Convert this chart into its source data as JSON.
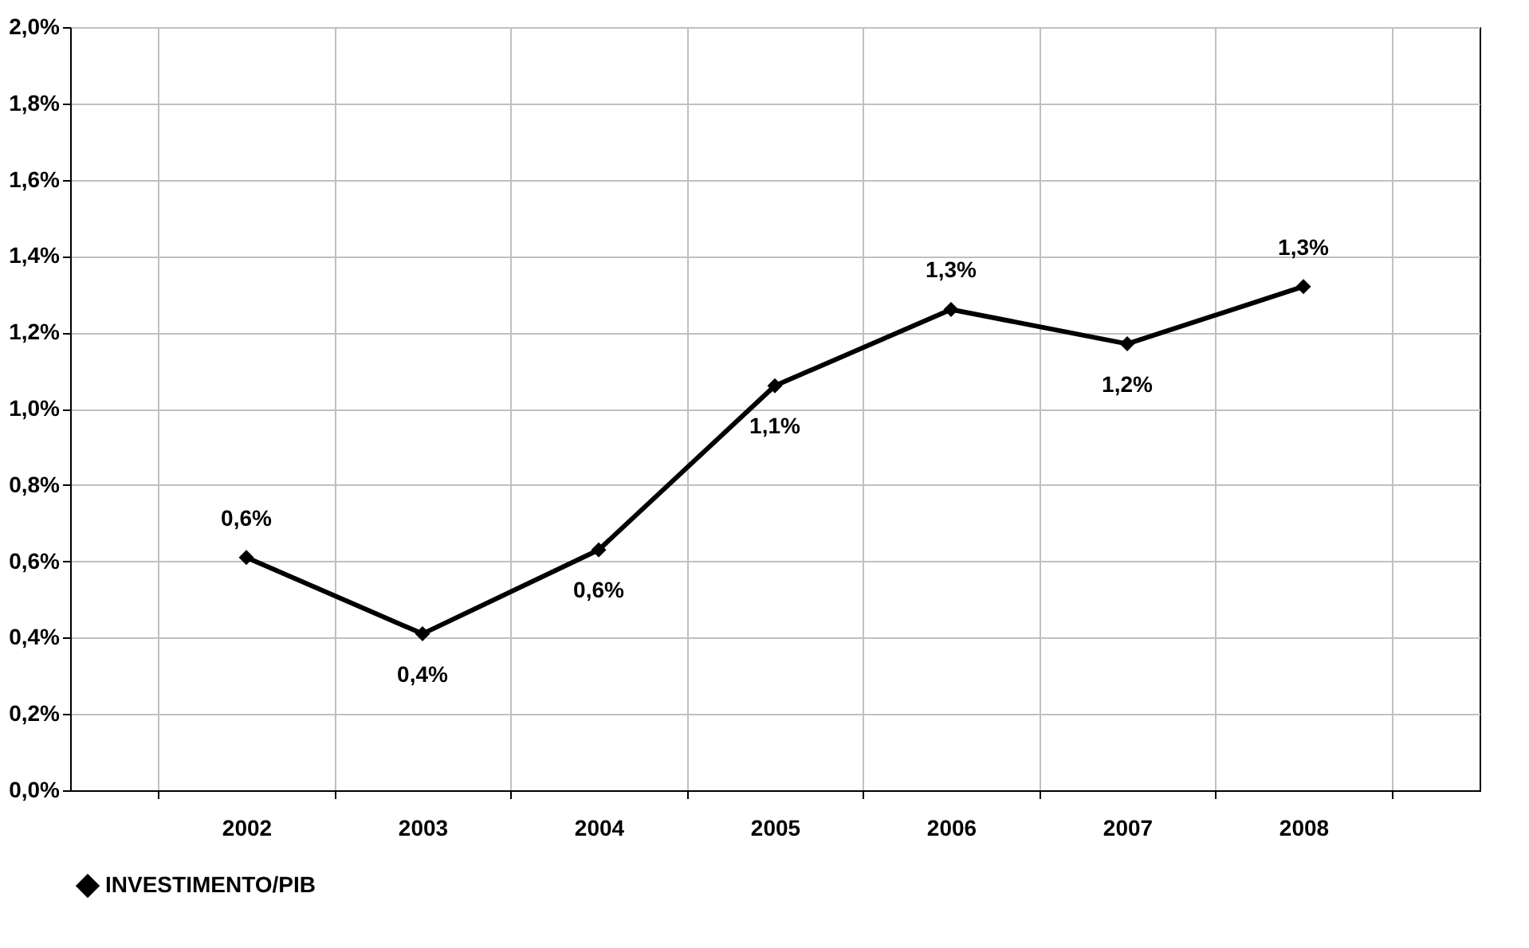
{
  "chart_data": {
    "type": "line",
    "categories": [
      "2002",
      "2003",
      "2004",
      "2005",
      "2006",
      "2007",
      "2008"
    ],
    "series": [
      {
        "name": "INVESTIMENTO/PIB",
        "color": "#000000",
        "values": [
          0.61,
          0.41,
          0.63,
          1.06,
          1.26,
          1.17,
          1.32
        ],
        "value_labels": [
          "0,6%",
          "0,4%",
          "0,6%",
          "1,1%",
          "1,3%",
          "1,2%",
          "1,3%"
        ]
      }
    ],
    "ylim": [
      0,
      2
    ],
    "yticks": [
      {
        "value": 0,
        "label": "0,0%"
      },
      {
        "value": 0.2,
        "label": "0,2%"
      },
      {
        "value": 0.4,
        "label": "0,4%"
      },
      {
        "value": 0.6,
        "label": "0,6%"
      },
      {
        "value": 0.8,
        "label": "0,8%"
      },
      {
        "value": 1.0,
        "label": "1,0%"
      },
      {
        "value": 1.2,
        "label": "1,2%"
      },
      {
        "value": 1.4,
        "label": "1,4%"
      },
      {
        "value": 1.6,
        "label": "1,6%"
      },
      {
        "value": 1.8,
        "label": "1,8%"
      },
      {
        "value": 2.0,
        "label": "2,0%"
      }
    ],
    "grid": true,
    "legend": "bottom",
    "marker": "diamond",
    "line_style": "solid"
  }
}
